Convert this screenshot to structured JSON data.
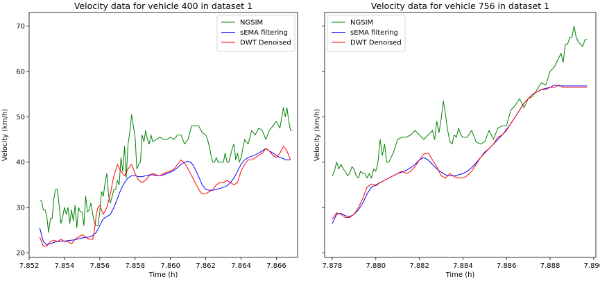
{
  "figure": {
    "shared_y": true
  },
  "chart_data": [
    {
      "type": "line",
      "title": "Velocity data for vehicle 400 in dataset 1",
      "xlabel": "Time (h)",
      "ylabel": "Velocity (km/h)",
      "xlim": [
        7.852,
        7.8672
      ],
      "ylim": [
        19,
        73
      ],
      "xticks": [
        7.852,
        7.854,
        7.856,
        7.858,
        7.86,
        7.862,
        7.864,
        7.866
      ],
      "yticks": [
        20,
        30,
        40,
        50,
        60,
        70
      ],
      "legend": "top-right",
      "grid": false,
      "series": [
        {
          "name": "NGSIM",
          "color": "#008000",
          "x": [
            7.8526,
            7.8527,
            7.8528,
            7.8529,
            7.853,
            7.8531,
            7.8532,
            7.8533,
            7.8534,
            7.8535,
            7.8536,
            7.8537,
            7.8538,
            7.8539,
            7.854,
            7.8541,
            7.8542,
            7.8543,
            7.8544,
            7.8545,
            7.8546,
            7.8547,
            7.8548,
            7.8549,
            7.855,
            7.8551,
            7.8552,
            7.8553,
            7.8554,
            7.8555,
            7.8556,
            7.8557,
            7.8558,
            7.8559,
            7.856,
            7.8561,
            7.8562,
            7.8563,
            7.8564,
            7.8565,
            7.8566,
            7.8567,
            7.8568,
            7.8569,
            7.857,
            7.8571,
            7.8572,
            7.8573,
            7.8574,
            7.8575,
            7.8576,
            7.8577,
            7.8578,
            7.8579,
            7.858,
            7.8581,
            7.8582,
            7.8583,
            7.8584,
            7.8585,
            7.8586,
            7.8587,
            7.8588,
            7.8589,
            7.859,
            7.8592,
            7.8594,
            7.8596,
            7.8598,
            7.86,
            7.8602,
            7.8604,
            7.8606,
            7.8608,
            7.861,
            7.8612,
            7.8614,
            7.8616,
            7.8618,
            7.862,
            7.8621,
            7.8622,
            7.8623,
            7.8624,
            7.8625,
            7.8626,
            7.8627,
            7.8628,
            7.8629,
            7.863,
            7.8631,
            7.8632,
            7.8633,
            7.8634,
            7.8635,
            7.8636,
            7.8637,
            7.8638,
            7.8639,
            7.864,
            7.8642,
            7.8644,
            7.8646,
            7.8648,
            7.865,
            7.8652,
            7.8654,
            7.8656,
            7.8658,
            7.866,
            7.8662,
            7.8664,
            7.8665,
            7.8666,
            7.8667,
            7.8668,
            7.8669
          ],
          "y": [
            31.5,
            31.5,
            29.5,
            29.5,
            28.0,
            24.5,
            27.5,
            27.5,
            32.0,
            34.0,
            34.0,
            30.5,
            26.5,
            28.0,
            30.0,
            28.5,
            30.0,
            26.5,
            29.5,
            27.0,
            30.5,
            25.5,
            30.0,
            29.0,
            29.0,
            26.0,
            32.5,
            29.0,
            29.5,
            31.0,
            28.5,
            26.5,
            26.0,
            26.0,
            29.0,
            33.5,
            32.5,
            35.5,
            37.5,
            32.5,
            31.0,
            32.5,
            34.0,
            34.0,
            36.0,
            35.0,
            41.0,
            38.0,
            43.5,
            36.5,
            44.0,
            46.5,
            50.5,
            48.0,
            45.5,
            38.5,
            39.5,
            40.0,
            46.0,
            44.5,
            47.0,
            45.0,
            44.0,
            46.0,
            44.5,
            45.0,
            45.5,
            45.0,
            45.0,
            45.5,
            45.0,
            46.0,
            46.0,
            44.0,
            45.0,
            48.0,
            48.0,
            48.0,
            46.5,
            46.0,
            45.0,
            43.5,
            41.5,
            40.0,
            40.0,
            41.0,
            40.0,
            40.0,
            40.0,
            40.0,
            42.0,
            40.0,
            40.0,
            41.5,
            43.0,
            44.0,
            40.5,
            42.0,
            40.0,
            41.0,
            45.0,
            44.0,
            47.0,
            46.0,
            47.5,
            47.0,
            45.0,
            47.0,
            48.0,
            49.0,
            47.5,
            52.0,
            50.0,
            52.0,
            49.0,
            47.0,
            47.0
          ]
        },
        {
          "name": "sEMA filtering",
          "color": "#0000ff",
          "x": [
            7.8526,
            7.8528,
            7.853,
            7.8532,
            7.8534,
            7.8536,
            7.8538,
            7.854,
            7.8542,
            7.8544,
            7.8546,
            7.8548,
            7.855,
            7.8552,
            7.8554,
            7.8556,
            7.8558,
            7.856,
            7.8562,
            7.8564,
            7.8566,
            7.8568,
            7.857,
            7.8572,
            7.8574,
            7.8576,
            7.8578,
            7.858,
            7.8582,
            7.8584,
            7.8586,
            7.8588,
            7.859,
            7.8592,
            7.8594,
            7.8596,
            7.8598,
            7.86,
            7.8602,
            7.8604,
            7.8606,
            7.8608,
            7.861,
            7.8612,
            7.8614,
            7.8616,
            7.8618,
            7.862,
            7.8622,
            7.8624,
            7.8626,
            7.8628,
            7.863,
            7.8632,
            7.8634,
            7.8636,
            7.8638,
            7.864,
            7.8642,
            7.8644,
            7.8646,
            7.8648,
            7.865,
            7.8652,
            7.8654,
            7.8656,
            7.8658,
            7.866,
            7.8662,
            7.8664,
            7.8665,
            7.8666,
            7.8667,
            7.8668
          ],
          "y": [
            25.5,
            22.5,
            21.8,
            22.0,
            22.3,
            22.5,
            22.6,
            22.6,
            22.7,
            22.8,
            22.9,
            23.1,
            23.3,
            23.4,
            23.5,
            23.8,
            24.5,
            26.0,
            27.5,
            28.0,
            28.5,
            30.0,
            32.0,
            34.0,
            35.5,
            36.5,
            37.0,
            37.0,
            36.8,
            36.8,
            37.0,
            37.2,
            37.2,
            37.1,
            37.0,
            37.2,
            37.5,
            37.8,
            38.2,
            38.8,
            39.5,
            40.0,
            40.2,
            39.8,
            38.5,
            36.8,
            35.0,
            34.0,
            33.8,
            33.8,
            34.0,
            34.2,
            34.5,
            34.8,
            35.5,
            36.5,
            38.0,
            39.5,
            40.5,
            41.0,
            41.3,
            41.6,
            42.0,
            42.5,
            43.0,
            42.5,
            42.0,
            41.5,
            41.0,
            40.8,
            40.5,
            40.5,
            40.5,
            40.5
          ]
        },
        {
          "name": "DWT Denoised",
          "color": "#ff0000",
          "x": [
            7.8526,
            7.8528,
            7.853,
            7.8532,
            7.8534,
            7.8536,
            7.8538,
            7.854,
            7.8542,
            7.8544,
            7.8546,
            7.8548,
            7.855,
            7.8552,
            7.8554,
            7.8556,
            7.8557,
            7.8558,
            7.8559,
            7.856,
            7.8562,
            7.8564,
            7.8566,
            7.8568,
            7.857,
            7.8572,
            7.8574,
            7.8576,
            7.8578,
            7.858,
            7.8582,
            7.8584,
            7.8586,
            7.8588,
            7.859,
            7.8592,
            7.8594,
            7.8596,
            7.8598,
            7.86,
            7.8602,
            7.8604,
            7.8606,
            7.8608,
            7.861,
            7.8612,
            7.8614,
            7.8616,
            7.8618,
            7.862,
            7.8622,
            7.8624,
            7.8626,
            7.8628,
            7.863,
            7.8632,
            7.8634,
            7.8636,
            7.8638,
            7.864,
            7.8642,
            7.8644,
            7.8646,
            7.8648,
            7.865,
            7.8652,
            7.8654,
            7.8656,
            7.8658,
            7.866,
            7.8662,
            7.8664,
            7.8666,
            7.8668
          ],
          "y": [
            23.5,
            21.5,
            21.5,
            22.5,
            22.8,
            22.5,
            23.0,
            22.5,
            22.5,
            22.0,
            23.0,
            23.5,
            24.0,
            23.5,
            23.0,
            23.0,
            25.0,
            28.5,
            30.0,
            30.5,
            28.5,
            30.0,
            33.0,
            37.0,
            39.5,
            38.0,
            37.0,
            38.5,
            39.5,
            37.5,
            36.0,
            35.5,
            36.0,
            37.0,
            37.5,
            37.2,
            37.0,
            37.5,
            37.8,
            38.0,
            38.5,
            39.5,
            40.5,
            39.8,
            38.5,
            37.0,
            35.5,
            34.0,
            33.0,
            33.0,
            33.5,
            34.0,
            35.0,
            35.5,
            35.5,
            36.0,
            35.5,
            35.0,
            35.5,
            38.0,
            39.5,
            40.5,
            40.5,
            41.0,
            41.5,
            42.0,
            43.0,
            42.5,
            41.5,
            41.0,
            42.0,
            43.5,
            42.5,
            40.5
          ]
        }
      ]
    },
    {
      "type": "line",
      "title": "Velocity data for vehicle 756 in dataset 1",
      "xlabel": "Time (h)",
      "ylabel": "Velocity (km/h)",
      "xlim": [
        7.87765,
        7.8901
      ],
      "ylim": [
        19,
        73
      ],
      "xticks": [
        7.878,
        7.88,
        7.882,
        7.884,
        7.886,
        7.888,
        7.89
      ],
      "yticks": [
        20,
        30,
        40,
        50,
        60,
        70
      ],
      "legend": "top-left",
      "grid": false,
      "series": [
        {
          "name": "NGSIM",
          "color": "#008000",
          "x": [
            7.878,
            7.8781,
            7.8782,
            7.8783,
            7.8784,
            7.8785,
            7.8786,
            7.8787,
            7.8788,
            7.8789,
            7.879,
            7.8791,
            7.8792,
            7.8793,
            7.8794,
            7.8795,
            7.8796,
            7.8797,
            7.8798,
            7.8799,
            7.88,
            7.8801,
            7.8802,
            7.8803,
            7.8804,
            7.8805,
            7.8806,
            7.8808,
            7.881,
            7.8812,
            7.8814,
            7.8816,
            7.8818,
            7.882,
            7.8822,
            7.8824,
            7.8826,
            7.8827,
            7.8828,
            7.8829,
            7.883,
            7.8831,
            7.8832,
            7.8833,
            7.8834,
            7.8835,
            7.8836,
            7.8837,
            7.8838,
            7.8839,
            7.884,
            7.8842,
            7.8844,
            7.8846,
            7.8848,
            7.885,
            7.8852,
            7.8854,
            7.8856,
            7.8858,
            7.886,
            7.8862,
            7.8864,
            7.8866,
            7.8868,
            7.887,
            7.8872,
            7.8874,
            7.8876,
            7.8878,
            7.888,
            7.8882,
            7.8884,
            7.8885,
            7.8886,
            7.8887,
            7.8888,
            7.8889,
            7.889,
            7.8891,
            7.8892,
            7.8893,
            7.8894,
            7.8895,
            7.8896,
            7.8897
          ],
          "y": [
            37.0,
            38.0,
            40.0,
            38.5,
            39.5,
            38.5,
            38.0,
            37.0,
            37.5,
            39.0,
            38.5,
            37.0,
            36.5,
            38.0,
            37.5,
            37.5,
            36.5,
            37.5,
            36.5,
            38.5,
            38.0,
            40.0,
            45.0,
            41.5,
            44.0,
            40.0,
            40.0,
            42.0,
            45.0,
            45.5,
            45.5,
            46.0,
            47.0,
            46.0,
            45.0,
            46.0,
            47.0,
            45.0,
            49.0,
            46.5,
            49.5,
            53.5,
            50.5,
            47.0,
            44.5,
            44.0,
            46.0,
            45.5,
            47.5,
            46.0,
            45.5,
            45.5,
            47.0,
            44.5,
            44.0,
            44.5,
            47.0,
            45.0,
            47.5,
            48.0,
            48.0,
            51.5,
            52.5,
            54.0,
            52.0,
            54.0,
            54.5,
            56.0,
            57.5,
            57.0,
            60.0,
            61.0,
            63.0,
            64.0,
            62.0,
            66.0,
            66.0,
            67.5,
            67.5,
            70.0,
            67.5,
            66.5,
            66.0,
            65.5,
            67.0,
            67.0
          ]
        },
        {
          "name": "sEMA filtering",
          "color": "#0000ff",
          "x": [
            7.878,
            7.8782,
            7.8784,
            7.8786,
            7.8788,
            7.879,
            7.8792,
            7.8794,
            7.8796,
            7.8798,
            7.88,
            7.8802,
            7.8804,
            7.8806,
            7.8808,
            7.881,
            7.8812,
            7.8814,
            7.8816,
            7.8818,
            7.882,
            7.8822,
            7.8824,
            7.8826,
            7.8828,
            7.883,
            7.8832,
            7.8834,
            7.8836,
            7.8838,
            7.884,
            7.8842,
            7.8844,
            7.8846,
            7.8848,
            7.885,
            7.8852,
            7.8854,
            7.8856,
            7.8858,
            7.886,
            7.8862,
            7.8864,
            7.8866,
            7.8868,
            7.887,
            7.8872,
            7.8874,
            7.8876,
            7.8878,
            7.888,
            7.8882,
            7.8884,
            7.8886,
            7.8888,
            7.889,
            7.8892,
            7.8894,
            7.8896,
            7.8897
          ],
          "y": [
            26.5,
            28.5,
            28.7,
            28.2,
            28.0,
            28.5,
            29.5,
            31.0,
            33.0,
            34.5,
            35.0,
            35.5,
            36.0,
            36.5,
            37.0,
            37.5,
            37.8,
            38.2,
            38.8,
            39.5,
            40.5,
            41.0,
            40.5,
            39.5,
            38.5,
            37.8,
            37.2,
            37.0,
            37.0,
            37.2,
            37.5,
            38.0,
            38.8,
            39.8,
            41.0,
            42.2,
            43.0,
            44.0,
            45.0,
            46.0,
            47.2,
            48.5,
            50.0,
            51.5,
            53.0,
            54.0,
            55.0,
            55.5,
            56.0,
            56.3,
            56.5,
            57.0,
            56.8,
            56.8,
            56.8,
            56.8,
            56.8,
            56.8,
            56.8,
            56.8
          ]
        },
        {
          "name": "DWT Denoised",
          "color": "#ff0000",
          "x": [
            7.878,
            7.8782,
            7.8784,
            7.8786,
            7.8788,
            7.879,
            7.8792,
            7.8794,
            7.8796,
            7.8798,
            7.88,
            7.8802,
            7.8804,
            7.8806,
            7.8808,
            7.881,
            7.8812,
            7.8814,
            7.8816,
            7.8818,
            7.882,
            7.8822,
            7.8824,
            7.8826,
            7.8828,
            7.883,
            7.8832,
            7.8834,
            7.8836,
            7.8838,
            7.884,
            7.8842,
            7.8844,
            7.8846,
            7.8848,
            7.885,
            7.8852,
            7.8854,
            7.8856,
            7.8858,
            7.886,
            7.8862,
            7.8864,
            7.8866,
            7.8868,
            7.887,
            7.8872,
            7.8874,
            7.8876,
            7.8878,
            7.888,
            7.8882,
            7.8884,
            7.8886,
            7.8888,
            7.889,
            7.8892,
            7.8894,
            7.8896,
            7.8897
          ],
          "y": [
            27.5,
            28.8,
            28.5,
            27.8,
            27.8,
            28.5,
            30.0,
            32.0,
            34.5,
            35.2,
            34.8,
            35.5,
            36.0,
            36.5,
            37.0,
            37.5,
            38.0,
            37.5,
            38.0,
            39.0,
            40.5,
            41.8,
            42.0,
            40.5,
            39.0,
            37.0,
            36.5,
            37.5,
            36.8,
            36.5,
            36.5,
            37.0,
            38.0,
            39.5,
            41.0,
            42.0,
            43.0,
            44.0,
            45.5,
            46.0,
            47.0,
            48.5,
            50.0,
            51.5,
            53.0,
            54.0,
            55.0,
            55.5,
            56.0,
            56.0,
            56.5,
            56.5,
            57.0,
            56.5,
            56.5,
            56.5,
            56.5,
            56.5,
            56.5,
            56.5
          ]
        }
      ]
    }
  ]
}
